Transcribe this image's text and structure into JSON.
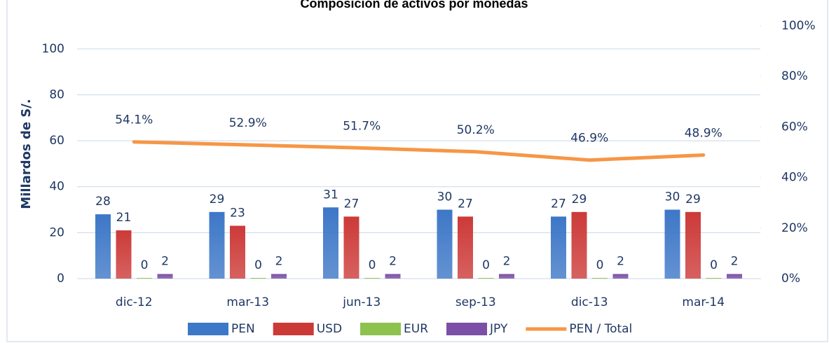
{
  "chart_data": {
    "type": "bar",
    "title": "Composición de activos por monedas",
    "y_label": "Millardos de S/.",
    "categories": [
      "dic-12",
      "mar-13",
      "jun-13",
      "sep-13",
      "dic-13",
      "mar-14"
    ],
    "series": [
      {
        "name": "PEN",
        "color": "#3d77c7",
        "values": [
          28,
          29,
          31,
          30,
          27,
          30
        ]
      },
      {
        "name": "USD",
        "color": "#cc3a38",
        "values": [
          21,
          23,
          27,
          27,
          29,
          29
        ]
      },
      {
        "name": "EUR",
        "color": "#8dc24f",
        "values": [
          0.3,
          0.3,
          0.3,
          0.3,
          0.3,
          0.3
        ],
        "value_labels": [
          "0",
          "0",
          "0",
          "0",
          "0",
          "0"
        ]
      },
      {
        "name": "JPY",
        "color": "#7b4fa5",
        "values": [
          2,
          2,
          2,
          2,
          2,
          2
        ]
      },
      {
        "name": "PEN / Total",
        "color": "#f79646",
        "type": "line",
        "axis": "y2",
        "values": [
          54.1,
          52.9,
          51.7,
          50.2,
          46.9,
          48.9
        ],
        "value_labels": [
          "54.1%",
          "52.9%",
          "51.7%",
          "50.2%",
          "46.9%",
          "48.9%"
        ]
      }
    ],
    "ylim": [
      0,
      110
    ],
    "yticks": [
      0,
      20,
      40,
      60,
      80,
      100
    ],
    "y2lim": [
      0,
      100
    ],
    "y2ticks": [
      {
        "value": 0,
        "label": "0%"
      },
      {
        "value": 20,
        "label": "20%"
      },
      {
        "value": 40,
        "label": "40%"
      },
      {
        "value": 60,
        "label": "60%"
      },
      {
        "value": 80,
        "label": "80%"
      },
      {
        "value": 100,
        "label": "100%"
      }
    ],
    "grid": true,
    "legend": "bottom"
  }
}
